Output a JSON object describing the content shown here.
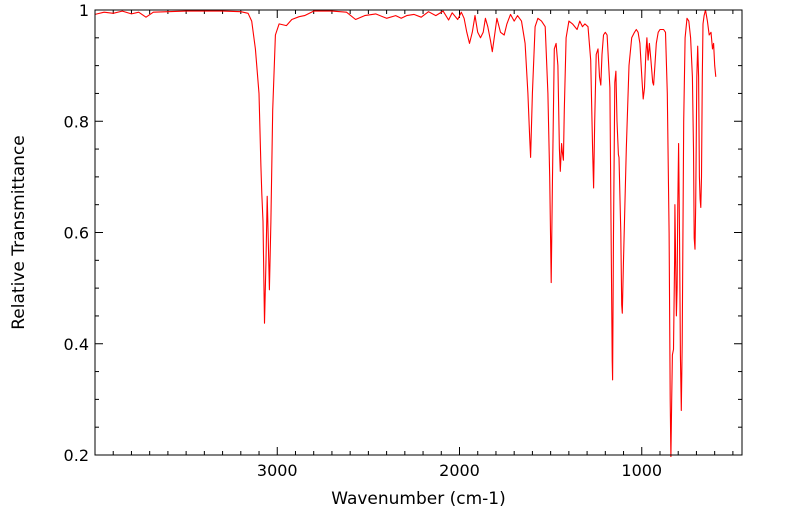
{
  "chart_data": {
    "type": "line",
    "title": "",
    "xlabel": "Wavenumber (cm-1)",
    "ylabel": "Relative Transmittance",
    "xlim": [
      4000,
      450
    ],
    "ylim": [
      0.2,
      1.0
    ],
    "x_ticks": [
      3000,
      2000,
      1000
    ],
    "x_tick_labels": [
      "3000",
      "2000",
      "1000"
    ],
    "y_ticks": [
      0.2,
      0.4,
      0.6,
      0.8,
      1.0
    ],
    "y_tick_labels": [
      "0.2",
      "0.4",
      "0.6",
      "0.8",
      "1"
    ],
    "grid": false,
    "legend": "none",
    "series_color": "#ff0000",
    "series": [
      {
        "points": [
          [
            4000,
            0.992
          ],
          [
            3950,
            0.996
          ],
          [
            3900,
            0.994
          ],
          [
            3850,
            0.998
          ],
          [
            3800,
            0.993
          ],
          [
            3760,
            0.996
          ],
          [
            3720,
            0.987
          ],
          [
            3680,
            0.996
          ],
          [
            3600,
            0.997
          ],
          [
            3500,
            0.998
          ],
          [
            3400,
            0.998
          ],
          [
            3300,
            0.998
          ],
          [
            3200,
            0.997
          ],
          [
            3160,
            0.994
          ],
          [
            3140,
            0.98
          ],
          [
            3120,
            0.93
          ],
          [
            3100,
            0.85
          ],
          [
            3090,
            0.72
          ],
          [
            3085,
            0.67
          ],
          [
            3078,
            0.62
          ],
          [
            3070,
            0.437
          ],
          [
            3062,
            0.55
          ],
          [
            3055,
            0.665
          ],
          [
            3050,
            0.6
          ],
          [
            3043,
            0.497
          ],
          [
            3035,
            0.62
          ],
          [
            3025,
            0.82
          ],
          [
            3010,
            0.955
          ],
          [
            2990,
            0.975
          ],
          [
            2950,
            0.972
          ],
          [
            2920,
            0.983
          ],
          [
            2880,
            0.988
          ],
          [
            2850,
            0.99
          ],
          [
            2800,
            0.998
          ],
          [
            2700,
            0.998
          ],
          [
            2620,
            0.996
          ],
          [
            2570,
            0.983
          ],
          [
            2520,
            0.99
          ],
          [
            2460,
            0.993
          ],
          [
            2400,
            0.985
          ],
          [
            2350,
            0.99
          ],
          [
            2320,
            0.985
          ],
          [
            2290,
            0.99
          ],
          [
            2250,
            0.992
          ],
          [
            2210,
            0.987
          ],
          [
            2170,
            0.997
          ],
          [
            2130,
            0.99
          ],
          [
            2090,
            0.998
          ],
          [
            2060,
            0.982
          ],
          [
            2040,
            0.995
          ],
          [
            2010,
            0.983
          ],
          [
            1990,
            0.996
          ],
          [
            1975,
            0.985
          ],
          [
            1960,
            0.96
          ],
          [
            1945,
            0.94
          ],
          [
            1930,
            0.96
          ],
          [
            1915,
            0.99
          ],
          [
            1900,
            0.96
          ],
          [
            1885,
            0.95
          ],
          [
            1870,
            0.96
          ],
          [
            1858,
            0.985
          ],
          [
            1845,
            0.97
          ],
          [
            1830,
            0.945
          ],
          [
            1820,
            0.925
          ],
          [
            1805,
            0.96
          ],
          [
            1795,
            0.985
          ],
          [
            1775,
            0.96
          ],
          [
            1755,
            0.955
          ],
          [
            1740,
            0.975
          ],
          [
            1720,
            0.992
          ],
          [
            1700,
            0.98
          ],
          [
            1682,
            0.99
          ],
          [
            1660,
            0.98
          ],
          [
            1640,
            0.94
          ],
          [
            1625,
            0.85
          ],
          [
            1615,
            0.77
          ],
          [
            1610,
            0.735
          ],
          [
            1600,
            0.85
          ],
          [
            1585,
            0.97
          ],
          [
            1570,
            0.985
          ],
          [
            1550,
            0.98
          ],
          [
            1530,
            0.97
          ],
          [
            1515,
            0.85
          ],
          [
            1505,
            0.7
          ],
          [
            1497,
            0.51
          ],
          [
            1490,
            0.7
          ],
          [
            1480,
            0.93
          ],
          [
            1470,
            0.94
          ],
          [
            1460,
            0.9
          ],
          [
            1452,
            0.75
          ],
          [
            1447,
            0.71
          ],
          [
            1440,
            0.76
          ],
          [
            1436,
            0.745
          ],
          [
            1430,
            0.73
          ],
          [
            1425,
            0.82
          ],
          [
            1415,
            0.95
          ],
          [
            1400,
            0.98
          ],
          [
            1380,
            0.975
          ],
          [
            1355,
            0.965
          ],
          [
            1340,
            0.98
          ],
          [
            1325,
            0.97
          ],
          [
            1312,
            0.975
          ],
          [
            1295,
            0.97
          ],
          [
            1280,
            0.91
          ],
          [
            1270,
            0.75
          ],
          [
            1264,
            0.68
          ],
          [
            1258,
            0.8
          ],
          [
            1250,
            0.92
          ],
          [
            1240,
            0.93
          ],
          [
            1232,
            0.88
          ],
          [
            1225,
            0.865
          ],
          [
            1218,
            0.92
          ],
          [
            1210,
            0.955
          ],
          [
            1200,
            0.96
          ],
          [
            1190,
            0.955
          ],
          [
            1175,
            0.86
          ],
          [
            1168,
            0.6
          ],
          [
            1162,
            0.37
          ],
          [
            1160,
            0.335
          ],
          [
            1155,
            0.6
          ],
          [
            1148,
            0.87
          ],
          [
            1142,
            0.89
          ],
          [
            1136,
            0.8
          ],
          [
            1128,
            0.74
          ],
          [
            1125,
            0.735
          ],
          [
            1115,
            0.6
          ],
          [
            1110,
            0.47
          ],
          [
            1107,
            0.455
          ],
          [
            1100,
            0.55
          ],
          [
            1085,
            0.75
          ],
          [
            1070,
            0.9
          ],
          [
            1055,
            0.95
          ],
          [
            1040,
            0.96
          ],
          [
            1030,
            0.965
          ],
          [
            1020,
            0.96
          ],
          [
            1010,
            0.94
          ],
          [
            1000,
            0.88
          ],
          [
            992,
            0.84
          ],
          [
            985,
            0.86
          ],
          [
            978,
            0.92
          ],
          [
            972,
            0.95
          ],
          [
            965,
            0.91
          ],
          [
            958,
            0.94
          ],
          [
            950,
            0.91
          ],
          [
            940,
            0.87
          ],
          [
            935,
            0.865
          ],
          [
            928,
            0.9
          ],
          [
            920,
            0.94
          ],
          [
            910,
            0.96
          ],
          [
            900,
            0.965
          ],
          [
            880,
            0.965
          ],
          [
            870,
            0.96
          ],
          [
            860,
            0.85
          ],
          [
            850,
            0.6
          ],
          [
            844,
            0.3
          ],
          [
            840,
            0.195
          ],
          [
            836,
            0.3
          ],
          [
            832,
            0.38
          ],
          [
            826,
            0.39
          ],
          [
            820,
            0.55
          ],
          [
            818,
            0.65
          ],
          [
            815,
            0.57
          ],
          [
            810,
            0.45
          ],
          [
            806,
            0.5
          ],
          [
            802,
            0.65
          ],
          [
            798,
            0.76
          ],
          [
            793,
            0.6
          ],
          [
            788,
            0.38
          ],
          [
            783,
            0.28
          ],
          [
            778,
            0.4
          ],
          [
            770,
            0.8
          ],
          [
            762,
            0.95
          ],
          [
            752,
            0.985
          ],
          [
            742,
            0.98
          ],
          [
            732,
            0.95
          ],
          [
            722,
            0.88
          ],
          [
            716,
            0.75
          ],
          [
            712,
            0.59
          ],
          [
            708,
            0.57
          ],
          [
            704,
            0.65
          ],
          [
            698,
            0.88
          ],
          [
            693,
            0.935
          ],
          [
            688,
            0.88
          ],
          [
            684,
            0.7
          ],
          [
            680,
            0.66
          ],
          [
            676,
            0.645
          ],
          [
            672,
            0.7
          ],
          [
            668,
            0.88
          ],
          [
            664,
            0.975
          ],
          [
            658,
            0.99
          ],
          [
            650,
            1.0
          ],
          [
            640,
            0.98
          ],
          [
            630,
            0.955
          ],
          [
            620,
            0.96
          ],
          [
            612,
            0.93
          ],
          [
            606,
            0.94
          ],
          [
            600,
            0.9
          ],
          [
            594,
            0.88
          ]
        ]
      }
    ]
  }
}
